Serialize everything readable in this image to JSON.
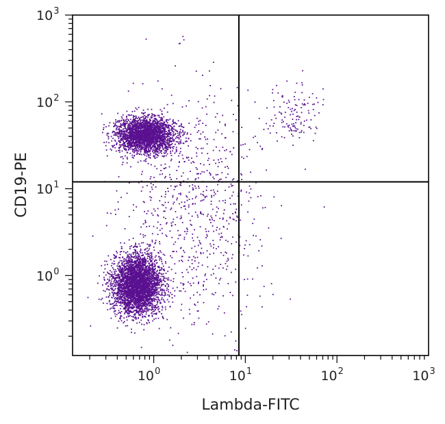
{
  "chart_data": {
    "type": "scatter",
    "plot_style": "flow cytometry dot plot with quadrant gates",
    "xlabel": "Lambda-FITC",
    "ylabel": "CD19-PE",
    "x_scale": "log",
    "y_scale": "log",
    "xlim": [
      0.13,
      1000
    ],
    "ylim": [
      0.12,
      1000
    ],
    "x_ticks": [
      {
        "value": 1,
        "label": "10",
        "exp": "0"
      },
      {
        "value": 10,
        "label": "10",
        "exp": "1"
      },
      {
        "value": 100,
        "label": "10",
        "exp": "2"
      },
      {
        "value": 1000,
        "label": "10",
        "exp": "3"
      }
    ],
    "y_ticks": [
      {
        "value": 1,
        "label": "10",
        "exp": "0"
      },
      {
        "value": 10,
        "label": "10",
        "exp": "1"
      },
      {
        "value": 100,
        "label": "10",
        "exp": "2"
      },
      {
        "value": 1000,
        "label": "10",
        "exp": "3"
      }
    ],
    "quadrant_gate": {
      "x": 8.5,
      "y": 12
    },
    "point_color": "#5a1190",
    "grid": false,
    "populations": [
      {
        "name": "lambda-negative CD19-negative",
        "center": [
          0.65,
          0.8
        ],
        "spread_log10": [
          0.13,
          0.17
        ],
        "count": 3600
      },
      {
        "name": "lambda-negative CD19-positive",
        "center": [
          0.8,
          42
        ],
        "spread_log10": [
          0.16,
          0.1
        ],
        "count": 2600
      },
      {
        "name": "lambda-positive CD19-positive",
        "center": [
          32,
          70
        ],
        "spread_log10": [
          0.16,
          0.16
        ],
        "count": 130
      },
      {
        "name": "diffuse events",
        "center": [
          2.5,
          6
        ],
        "spread_log10": [
          0.4,
          0.65
        ],
        "count": 850
      }
    ]
  }
}
